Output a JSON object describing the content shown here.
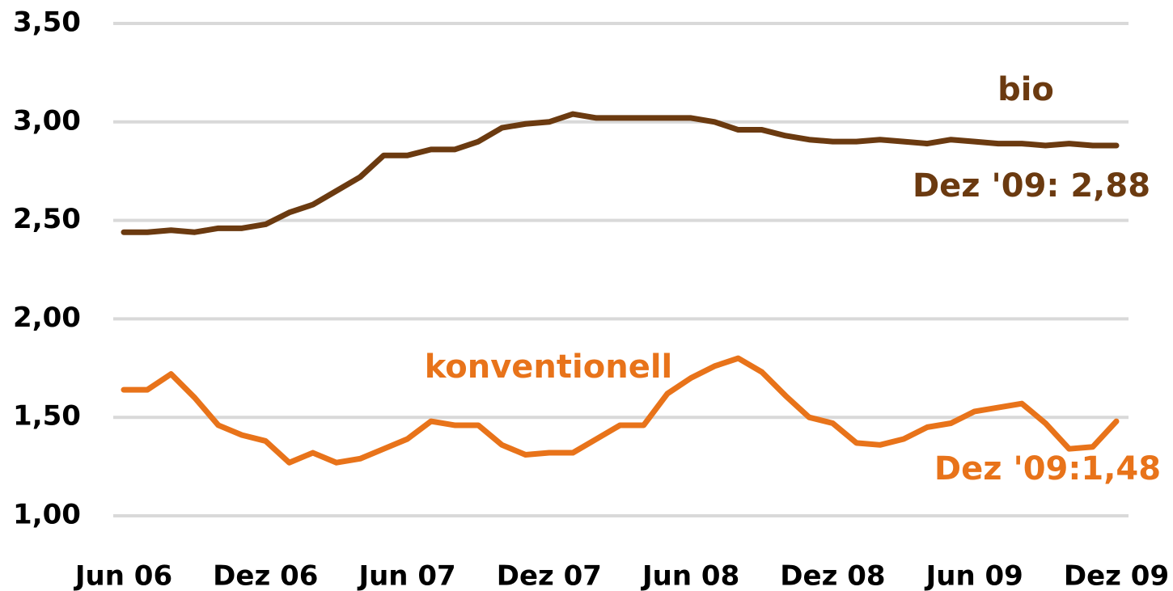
{
  "chart_data": {
    "type": "line",
    "categories": [
      "Jun 06",
      null,
      null,
      null,
      null,
      null,
      "Dez 06",
      null,
      null,
      null,
      null,
      null,
      "Jun 07",
      null,
      null,
      null,
      null,
      null,
      "Dez 07",
      null,
      null,
      null,
      null,
      null,
      "Jun 08",
      null,
      null,
      null,
      null,
      null,
      "Dez 08",
      null,
      null,
      null,
      null,
      null,
      "Jun 09",
      null,
      null,
      null,
      null,
      null,
      "Dez 09"
    ],
    "series": [
      {
        "name": "bio",
        "color": "#6b3a10",
        "values": [
          2.44,
          2.44,
          2.45,
          2.44,
          2.46,
          2.46,
          2.48,
          2.54,
          2.58,
          2.65,
          2.72,
          2.83,
          2.83,
          2.86,
          2.86,
          2.9,
          2.97,
          2.99,
          3.0,
          3.04,
          3.02,
          3.02,
          3.02,
          3.02,
          3.02,
          3.0,
          2.96,
          2.96,
          2.93,
          2.91,
          2.9,
          2.9,
          2.91,
          2.9,
          2.89,
          2.91,
          2.9,
          2.89,
          2.89,
          2.88,
          2.89,
          2.88,
          2.88
        ]
      },
      {
        "name": "konventionell",
        "color": "#e8731a",
        "values": [
          1.64,
          1.64,
          1.72,
          1.6,
          1.46,
          1.41,
          1.38,
          1.27,
          1.32,
          1.27,
          1.29,
          1.34,
          1.39,
          1.48,
          1.46,
          1.46,
          1.36,
          1.31,
          1.32,
          1.32,
          1.39,
          1.46,
          1.46,
          1.62,
          1.7,
          1.76,
          1.8,
          1.73,
          1.61,
          1.5,
          1.47,
          1.37,
          1.36,
          1.39,
          1.45,
          1.47,
          1.53,
          1.55,
          1.57,
          1.47,
          1.34,
          1.35,
          1.48
        ]
      }
    ],
    "annotations": [
      "Dez '09: 2,88",
      "Dez '09:1,48"
    ],
    "ylim": [
      1.0,
      3.5
    ],
    "yticks": [
      {
        "value": 1.0,
        "label": "1,00"
      },
      {
        "value": 1.5,
        "label": "1,50"
      },
      {
        "value": 2.0,
        "label": "2,00"
      },
      {
        "value": 2.5,
        "label": "2,50"
      },
      {
        "value": 3.0,
        "label": "3,00"
      },
      {
        "value": 3.5,
        "label": "3,50"
      }
    ],
    "grid": true
  }
}
